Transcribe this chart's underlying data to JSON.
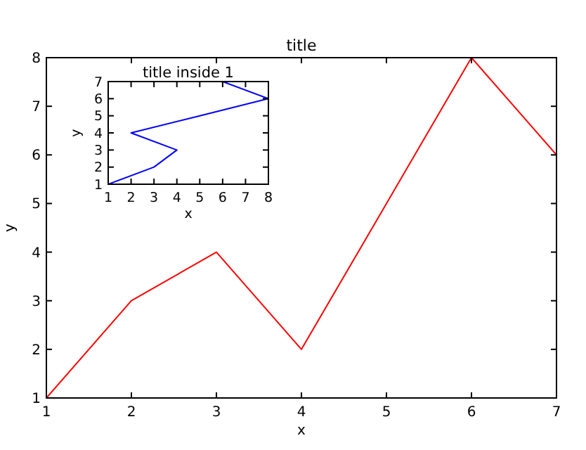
{
  "chart_data": [
    {
      "type": "line",
      "title": "title",
      "xlabel": "x",
      "ylabel": "y",
      "x": [
        1,
        2,
        3,
        4,
        5,
        6,
        7
      ],
      "series": [
        {
          "color": "#ff0000",
          "values": [
            1,
            3,
            4,
            2,
            5,
            8,
            6
          ]
        }
      ],
      "xlim": [
        1,
        7
      ],
      "ylim": [
        1,
        8
      ],
      "xticks": [
        1,
        2,
        3,
        4,
        5,
        6,
        7
      ],
      "yticks": [
        1,
        2,
        3,
        4,
        5,
        6,
        7,
        8
      ],
      "grid": false
    },
    {
      "type": "line",
      "title": "title inside 1",
      "xlabel": "x",
      "ylabel": "y",
      "x": [
        1,
        3,
        4,
        2,
        5,
        8,
        6
      ],
      "series": [
        {
          "color": "#0000ff",
          "values": [
            1,
            2,
            3,
            4,
            5,
            6,
            7
          ]
        }
      ],
      "xlim": [
        1,
        8
      ],
      "ylim": [
        1,
        7
      ],
      "xticks": [
        1,
        2,
        3,
        4,
        5,
        6,
        7,
        8
      ],
      "yticks": [
        1,
        2,
        3,
        4,
        5,
        6,
        7
      ],
      "grid": false
    }
  ]
}
